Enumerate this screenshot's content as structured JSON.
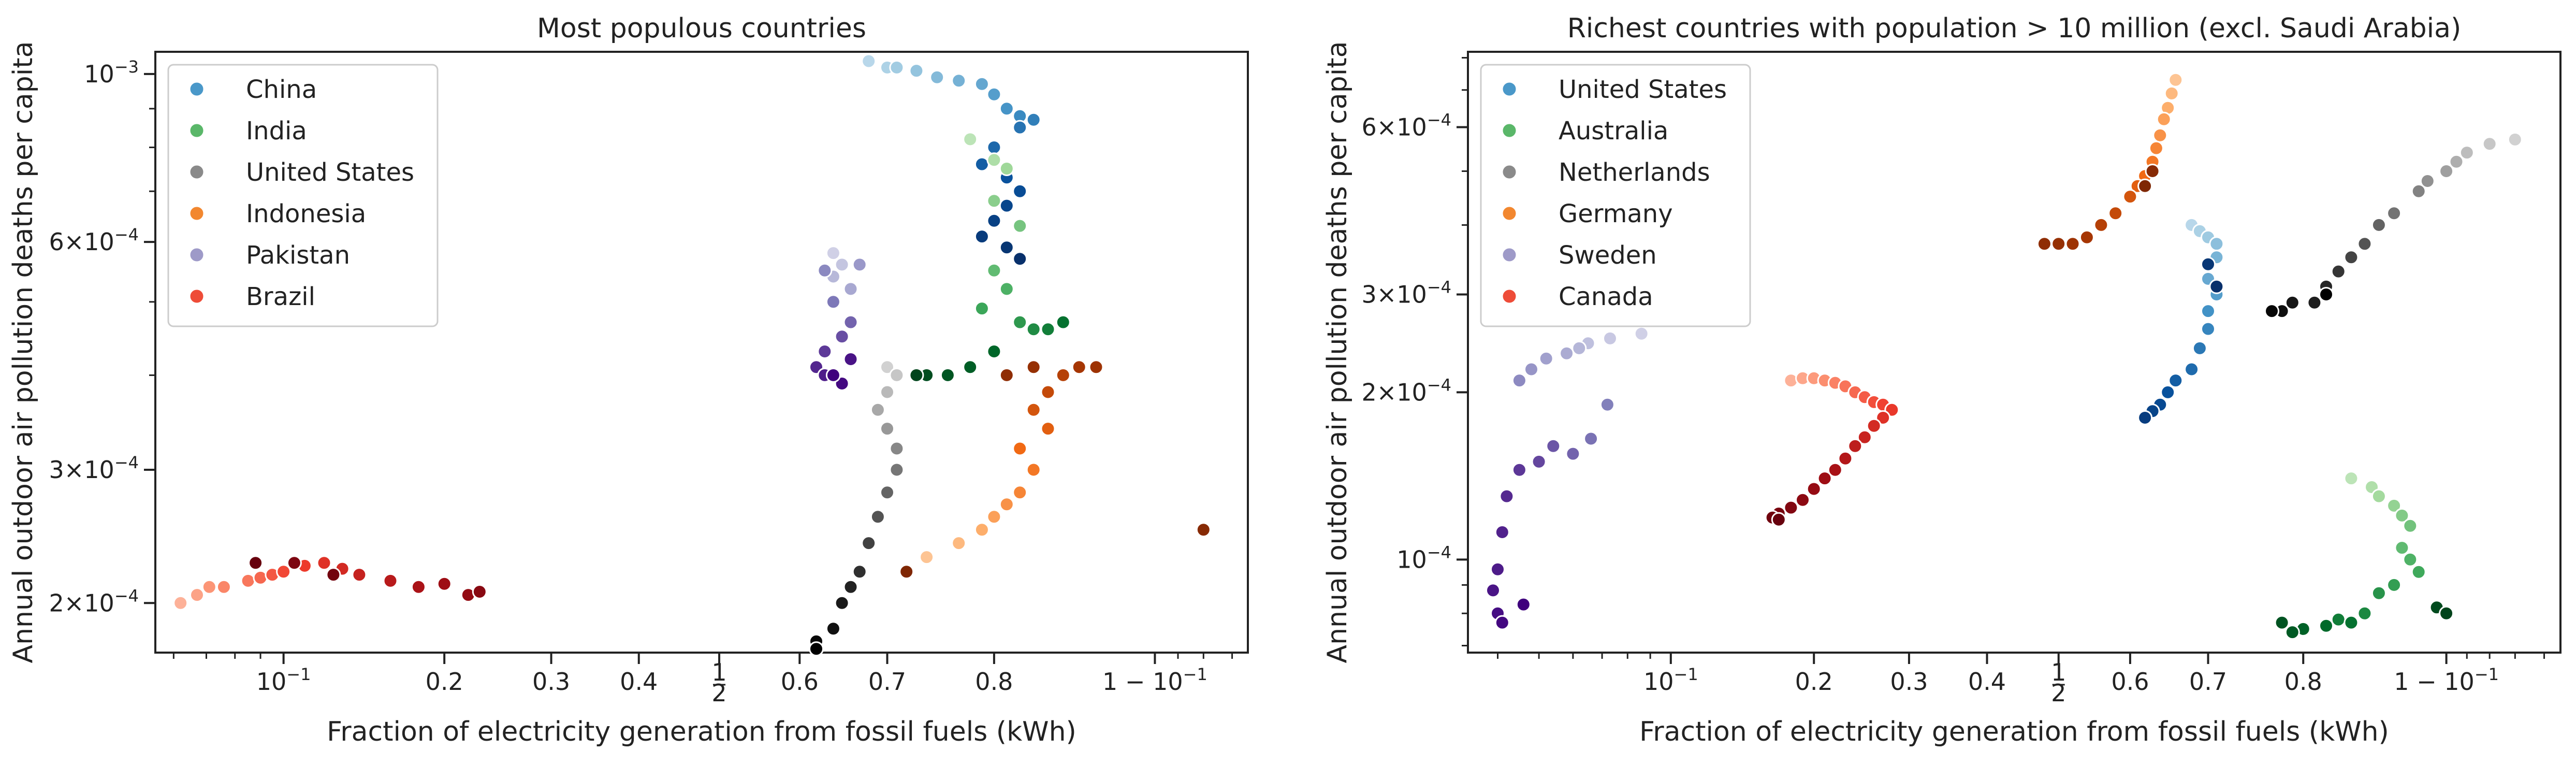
{
  "figure": {
    "xlabel": "Fraction of electricity generation from fossil fuels (kWh)",
    "ylabel": "Annual outdoor air pollution deaths per capita"
  },
  "chart_data": [
    {
      "type": "scatter",
      "title": "Most populous countries",
      "xlabel": "Fraction of electricity generation from fossil fuels (kWh)",
      "ylabel": "Annual outdoor air pollution deaths per capita",
      "x_scale": "logit",
      "y_scale": "log",
      "xlim": [
        0.055,
        0.935
      ],
      "ylim": [
        0.000172,
        0.00107
      ],
      "xticks": [
        "10^-1",
        "0.2",
        "0.3",
        "0.4",
        "1/2",
        "0.6",
        "0.7",
        "0.8",
        "1 - 10^-1"
      ],
      "yticks": [
        "2×10^-4",
        "3×10^-4",
        "6×10^-4",
        "10^-3"
      ],
      "legend": "top-left",
      "grid": false,
      "series": [
        {
          "name": "China",
          "color": "#4a98c9",
          "colormap": "Blues",
          "x": [
            0.68,
            0.7,
            0.71,
            0.73,
            0.75,
            0.77,
            0.79,
            0.8,
            0.81,
            0.82,
            0.83,
            0.82,
            0.8,
            0.79,
            0.81,
            0.82,
            0.81,
            0.8,
            0.79,
            0.81,
            0.82
          ],
          "y": [
            0.00104,
            0.00102,
            0.00102,
            0.00101,
            0.00099,
            0.00098,
            0.00097,
            0.00094,
            0.0009,
            0.00088,
            0.00087,
            0.00085,
            0.0008,
            0.00076,
            0.00073,
            0.0007,
            0.00067,
            0.00064,
            0.00061,
            0.00059,
            0.00057
          ]
        },
        {
          "name": "India",
          "color": "#5ab769",
          "colormap": "Greens",
          "x": [
            0.78,
            0.8,
            0.81,
            0.8,
            0.82,
            0.8,
            0.81,
            0.79,
            0.82,
            0.83,
            0.84,
            0.85,
            0.8,
            0.78,
            0.76,
            0.74,
            0.73
          ],
          "y": [
            0.00082,
            0.00077,
            0.00075,
            0.00068,
            0.00063,
            0.00055,
            0.00052,
            0.00049,
            0.00047,
            0.00046,
            0.00046,
            0.00047,
            0.00043,
            0.00041,
            0.0004,
            0.0004,
            0.0004
          ]
        },
        {
          "name": "United States",
          "color": "#8a8a8a",
          "colormap": "Greys",
          "x": [
            0.7,
            0.71,
            0.7,
            0.69,
            0.7,
            0.71,
            0.71,
            0.7,
            0.69,
            0.68,
            0.67,
            0.66,
            0.65,
            0.64,
            0.62,
            0.62
          ],
          "y": [
            0.00041,
            0.0004,
            0.00038,
            0.00036,
            0.00034,
            0.00032,
            0.0003,
            0.00028,
            0.00026,
            0.00024,
            0.00022,
            0.00021,
            0.0002,
            0.000185,
            0.000178,
            0.000174
          ]
        },
        {
          "name": "Indonesia",
          "color": "#f2872f",
          "colormap": "Oranges",
          "x": [
            0.74,
            0.77,
            0.79,
            0.8,
            0.81,
            0.82,
            0.83,
            0.82,
            0.84,
            0.83,
            0.84,
            0.85,
            0.86,
            0.87,
            0.83,
            0.81,
            0.92,
            0.72
          ],
          "y": [
            0.00023,
            0.00024,
            0.00025,
            0.00026,
            0.00027,
            0.00028,
            0.0003,
            0.00032,
            0.00034,
            0.00036,
            0.00038,
            0.0004,
            0.00041,
            0.00041,
            0.00041,
            0.0004,
            0.00025,
            0.00022
          ]
        },
        {
          "name": "Pakistan",
          "color": "#9e9ac8",
          "colormap": "Purples",
          "x": [
            0.64,
            0.65,
            0.64,
            0.66,
            0.67,
            0.63,
            0.64,
            0.66,
            0.65,
            0.63,
            0.62,
            0.63,
            0.66,
            0.65,
            0.64
          ],
          "y": [
            0.00058,
            0.00056,
            0.00054,
            0.00052,
            0.00056,
            0.00055,
            0.0005,
            0.00047,
            0.00045,
            0.00043,
            0.00041,
            0.0004,
            0.00042,
            0.00039,
            0.0004
          ]
        },
        {
          "name": "Brazil",
          "color": "#ee4c38",
          "colormap": "Reds",
          "x": [
            0.062,
            0.067,
            0.071,
            0.076,
            0.085,
            0.09,
            0.095,
            0.1,
            0.11,
            0.12,
            0.13,
            0.14,
            0.16,
            0.18,
            0.2,
            0.22,
            0.23,
            0.105,
            0.125,
            0.088
          ],
          "y": [
            0.0002,
            0.000205,
            0.00021,
            0.00021,
            0.000214,
            0.000216,
            0.000218,
            0.00022,
            0.000224,
            0.000226,
            0.000222,
            0.000218,
            0.000214,
            0.00021,
            0.000212,
            0.000205,
            0.000207,
            0.000226,
            0.000218,
            0.000226
          ]
        }
      ]
    },
    {
      "type": "scatter",
      "title": "Richest countries with population > 10 million (excl. Saudi Arabia)",
      "xlabel": "Fraction of electricity generation from fossil fuels (kWh)",
      "ylabel": "Annual outdoor air pollution deaths per capita",
      "x_scale": "logit",
      "y_scale": "log",
      "xlim": [
        0.034,
        0.945
      ],
      "ylim": [
        6.8e-05,
        0.00082
      ],
      "xticks": [
        "10^-1",
        "0.2",
        "0.3",
        "0.4",
        "1/2",
        "0.6",
        "0.7",
        "0.8",
        "1 - 10^-1"
      ],
      "yticks": [
        "10^-4",
        "2×10^-4",
        "3×10^-4",
        "6×10^-4"
      ],
      "legend": "top-left",
      "grid": false,
      "series": [
        {
          "name": "United States",
          "color": "#4a98c9",
          "colormap": "Blues",
          "x": [
            0.68,
            0.69,
            0.7,
            0.71,
            0.71,
            0.7,
            0.71,
            0.7,
            0.7,
            0.69,
            0.68,
            0.66,
            0.65,
            0.64,
            0.63,
            0.62,
            0.7,
            0.71
          ],
          "y": [
            0.0004,
            0.00039,
            0.00038,
            0.00037,
            0.00035,
            0.00032,
            0.0003,
            0.00028,
            0.00026,
            0.00024,
            0.00022,
            0.00021,
            0.0002,
            0.00019,
            0.000185,
            0.00018,
            0.00034,
            0.00031
          ]
        },
        {
          "name": "Australia",
          "color": "#5ab769",
          "colormap": "Greens",
          "x": [
            0.84,
            0.855,
            0.86,
            0.87,
            0.875,
            0.88,
            0.875,
            0.88,
            0.885,
            0.87,
            0.86,
            0.85,
            0.83,
            0.84,
            0.82,
            0.8,
            0.79,
            0.78,
            0.895,
            0.9
          ],
          "y": [
            0.00014,
            0.000135,
            0.00013,
            0.000125,
            0.00012,
            0.000115,
            0.000105,
            0.0001,
            9.5e-05,
            9e-05,
            8.7e-05,
            8e-05,
            7.8e-05,
            7.7e-05,
            7.6e-05,
            7.5e-05,
            7.4e-05,
            7.7e-05,
            8.2e-05,
            8e-05
          ]
        },
        {
          "name": "Netherlands",
          "color": "#8a8a8a",
          "colormap": "Greys",
          "x": [
            0.93,
            0.92,
            0.91,
            0.905,
            0.9,
            0.89,
            0.885,
            0.87,
            0.86,
            0.85,
            0.84,
            0.83,
            0.82,
            0.81,
            0.79,
            0.78,
            0.77,
            0.82
          ],
          "y": [
            0.00057,
            0.00056,
            0.00054,
            0.00052,
            0.0005,
            0.00048,
            0.00046,
            0.00042,
            0.0004,
            0.00037,
            0.00035,
            0.00033,
            0.00031,
            0.00029,
            0.00029,
            0.00028,
            0.00028,
            0.0003
          ]
        },
        {
          "name": "Germany",
          "color": "#f2872f",
          "colormap": "Oranges",
          "x": [
            0.66,
            0.655,
            0.65,
            0.645,
            0.64,
            0.635,
            0.63,
            0.62,
            0.61,
            0.6,
            0.58,
            0.56,
            0.54,
            0.52,
            0.5,
            0.48,
            0.63,
            0.62
          ],
          "y": [
            0.00073,
            0.00069,
            0.00065,
            0.00062,
            0.00058,
            0.00055,
            0.00052,
            0.00049,
            0.00047,
            0.00045,
            0.00042,
            0.0004,
            0.00038,
            0.00037,
            0.00037,
            0.00037,
            0.0005,
            0.00047
          ]
        },
        {
          "name": "Sweden",
          "color": "#9e9ac8",
          "colormap": "Purples",
          "x": [
            0.086,
            0.073,
            0.065,
            0.062,
            0.058,
            0.052,
            0.048,
            0.045,
            0.072,
            0.066,
            0.06,
            0.054,
            0.05,
            0.045,
            0.042,
            0.041,
            0.04,
            0.039,
            0.04,
            0.041,
            0.046
          ],
          "y": [
            0.000255,
            0.00025,
            0.000245,
            0.00024,
            0.000235,
            0.00023,
            0.00022,
            0.00021,
            0.00019,
            0.000165,
            0.000155,
            0.00016,
            0.00015,
            0.000145,
            0.00013,
            0.000112,
            9.6e-05,
            8.8e-05,
            8e-05,
            7.7e-05,
            8.3e-05
          ]
        },
        {
          "name": "Canada",
          "color": "#ee4c38",
          "colormap": "Reds",
          "x": [
            0.18,
            0.19,
            0.2,
            0.21,
            0.22,
            0.23,
            0.24,
            0.25,
            0.26,
            0.27,
            0.28,
            0.27,
            0.26,
            0.25,
            0.24,
            0.23,
            0.22,
            0.21,
            0.2,
            0.19,
            0.18,
            0.17,
            0.165,
            0.17
          ],
          "y": [
            0.00021,
            0.000212,
            0.000212,
            0.00021,
            0.000208,
            0.000205,
            0.0002,
            0.000196,
            0.000192,
            0.00019,
            0.000186,
            0.00018,
            0.000174,
            0.000166,
            0.00016,
            0.000152,
            0.000145,
            0.00014,
            0.000134,
            0.000128,
            0.000124,
            0.000121,
            0.000119,
            0.000118
          ]
        }
      ]
    }
  ]
}
